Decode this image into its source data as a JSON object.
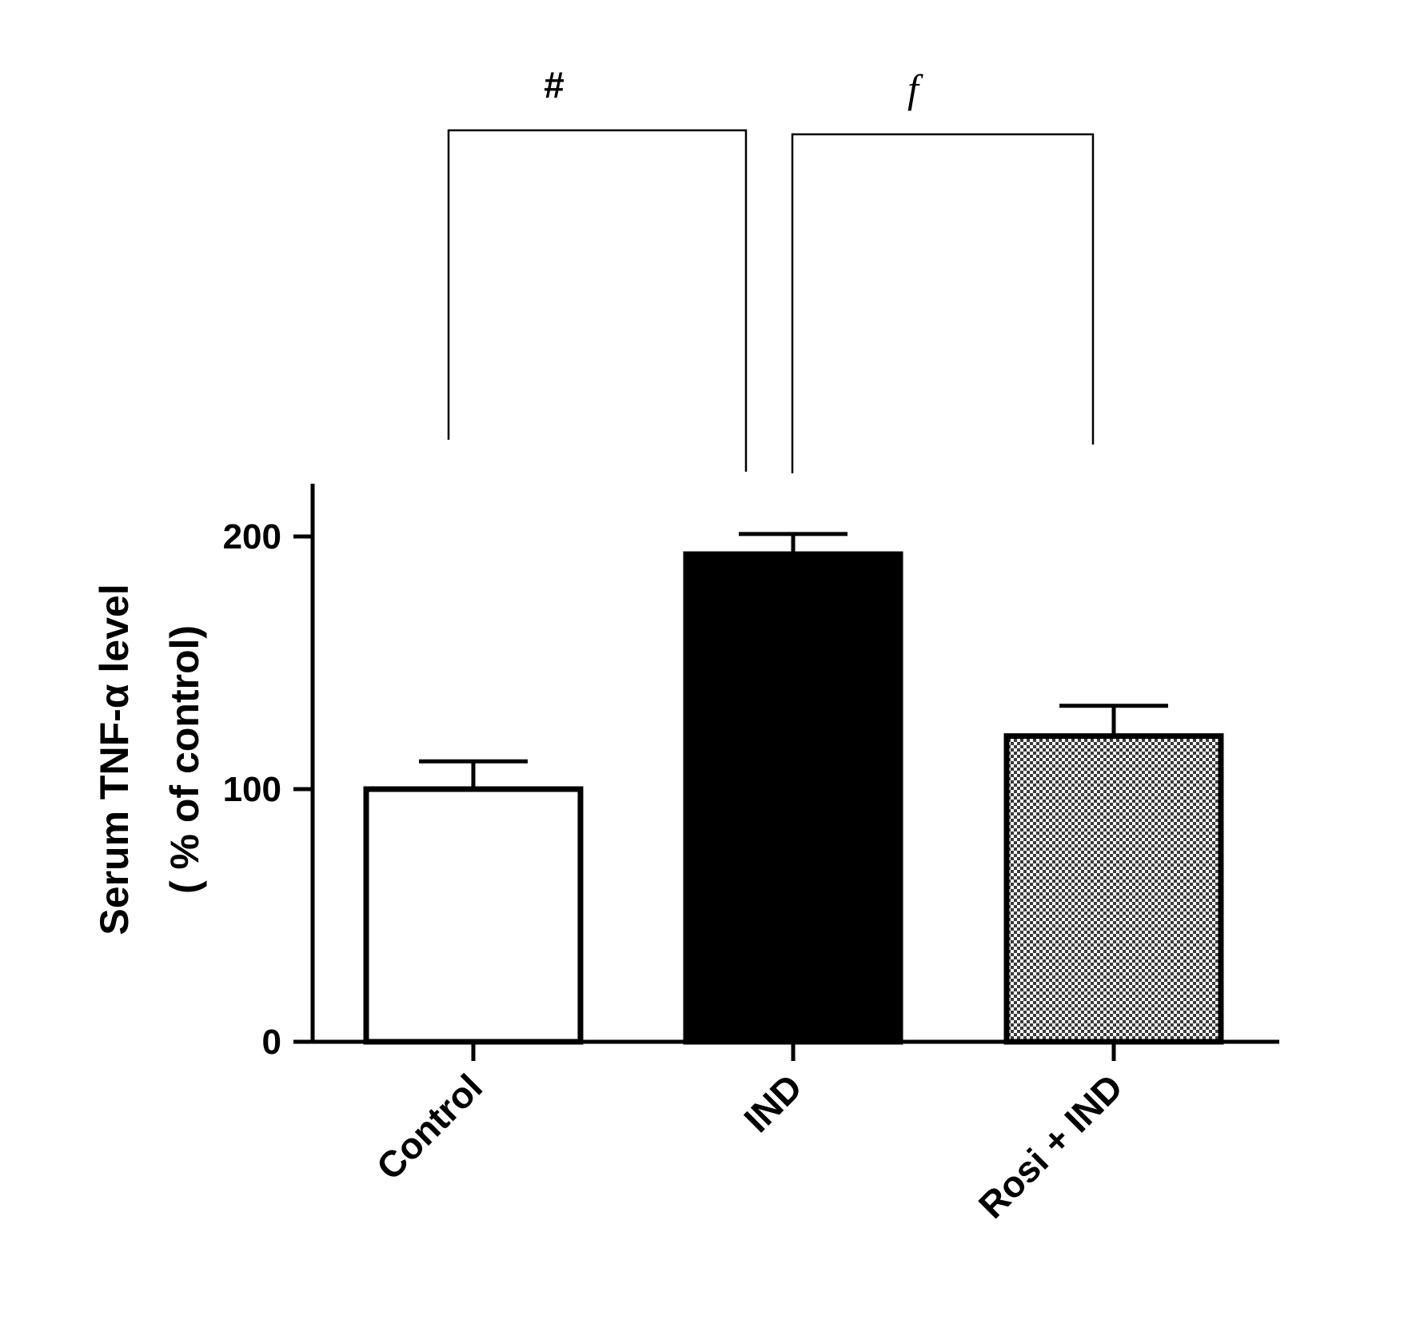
{
  "chart_data": {
    "type": "bar",
    "categories": [
      "Control",
      "IND",
      "Rosi + IND"
    ],
    "values": [
      100,
      193,
      121
    ],
    "errors": [
      11,
      8,
      12
    ],
    "fills": [
      "#ffffff",
      "#000000",
      "checker"
    ],
    "ylabel_line1": "Serum TNF-α level",
    "ylabel_line2": "( % of control)",
    "xlabel": "",
    "title": "",
    "ylim": [
      0,
      220
    ],
    "yticks": [
      0,
      100,
      200
    ],
    "ytick_labels": [
      "0",
      "100",
      "200"
    ],
    "grid": false,
    "legend": "none",
    "significance": [
      {
        "from": 0,
        "to": 1,
        "label": "#",
        "italic": false
      },
      {
        "from": 1,
        "to": 2,
        "label": "f",
        "italic": true
      }
    ]
  }
}
